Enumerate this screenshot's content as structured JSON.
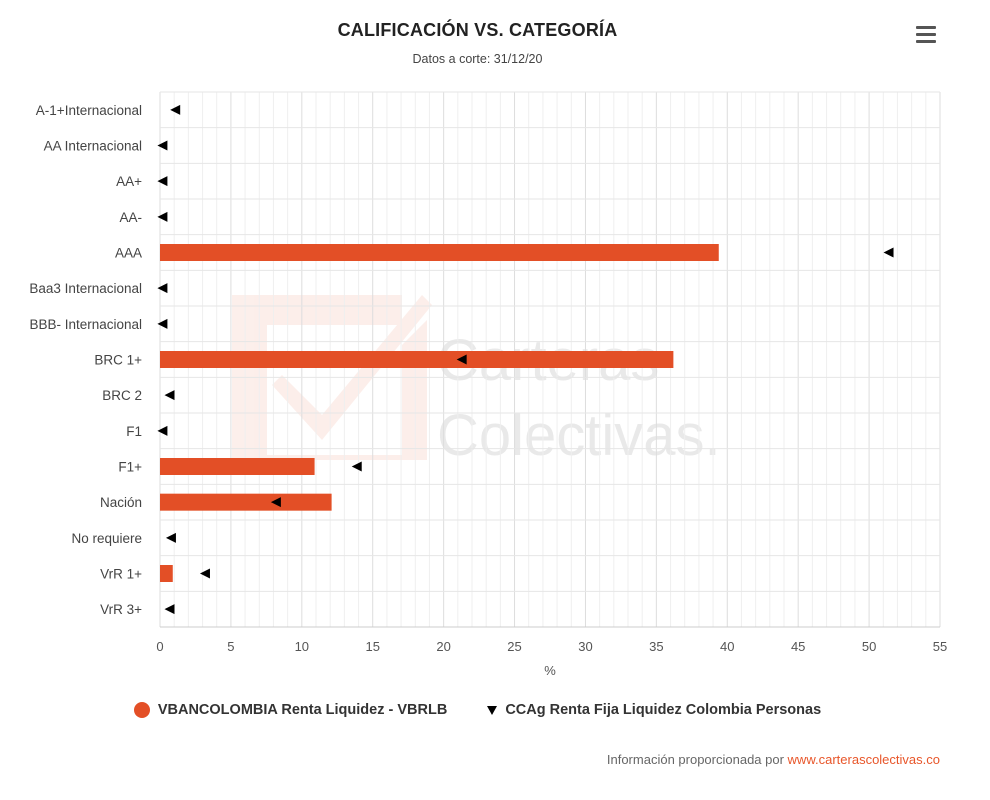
{
  "title": "CALIFICACIÓN VS. CATEGORÍA",
  "subtitle": "Datos a corte: 31/12/20",
  "menu_icon": "hamburger-menu-icon",
  "watermark": {
    "line1": "Carteras",
    "line2": "Colectivas."
  },
  "credits": {
    "prefix": "Información proporcionada por ",
    "link": "www.carterascolectivas.co",
    "link_color": "#e8562a"
  },
  "colors": {
    "bar": "#e34f26",
    "marker": "#000000",
    "grid": "#e6e6e6"
  },
  "chart_data": {
    "type": "bar",
    "orientation": "horizontal",
    "title": "CALIFICACIÓN VS. CATEGORÍA",
    "subtitle": "Datos a corte: 31/12/20",
    "xlabel": "%",
    "ylabel": "",
    "xlim": [
      0,
      55
    ],
    "xticks": [
      0,
      5,
      10,
      15,
      20,
      25,
      30,
      35,
      40,
      45,
      50,
      55
    ],
    "grid": true,
    "legend_position": "bottom",
    "categories": [
      "A-1+Internacional",
      "AA Internacional",
      "AA+",
      "AA-",
      "AAA",
      "Baa3 Internacional",
      "BBB- Internacional",
      "BRC 1+",
      "BRC 2",
      "F1",
      "F1+",
      "Nación",
      "No requiere",
      "VrR 1+",
      "VrR 3+"
    ],
    "series": [
      {
        "name": "VBANCOLOMBIA Renta Liquidez - VBRLB",
        "type": "bar",
        "color": "#e34f26",
        "values": [
          0,
          0,
          0,
          0,
          39.4,
          0,
          0,
          36.2,
          0,
          0,
          10.9,
          12.1,
          0,
          0.9,
          0
        ]
      },
      {
        "name": "CCAg Renta Fija Liquidez Colombia Personas",
        "type": "marker",
        "marker": "triangle-left",
        "color": "#000000",
        "values": [
          1.0,
          0.1,
          0.1,
          0.1,
          51.3,
          0.1,
          0.1,
          21.2,
          0.6,
          0.1,
          13.8,
          8.1,
          0.7,
          3.1,
          0.6
        ]
      }
    ]
  }
}
